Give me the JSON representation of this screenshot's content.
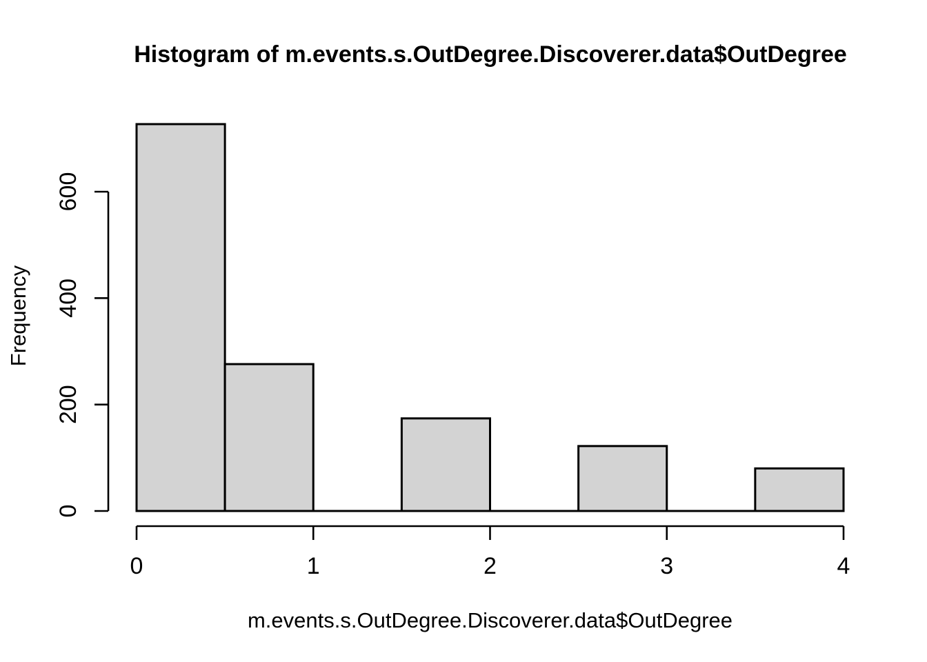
{
  "figure": {
    "background_color": "#FFFFFF",
    "text_color": "#000000"
  },
  "chart_data": {
    "type": "bar",
    "subtype": "histogram",
    "title": "Histogram of m.events.s.OutDegree.Discoverer.data$OutDegree",
    "xlabel": "m.events.s.OutDegree.Discoverer.data$OutDegree",
    "ylabel": "Frequency",
    "bins": [
      {
        "x0": 0.0,
        "x1": 0.5,
        "count": 727
      },
      {
        "x0": 0.5,
        "x1": 1.0,
        "count": 276
      },
      {
        "x0": 1.0,
        "x1": 1.5,
        "count": 0
      },
      {
        "x0": 1.5,
        "x1": 2.0,
        "count": 174
      },
      {
        "x0": 2.0,
        "x1": 2.5,
        "count": 0
      },
      {
        "x0": 2.5,
        "x1": 3.0,
        "count": 122
      },
      {
        "x0": 3.0,
        "x1": 3.5,
        "count": 0
      },
      {
        "x0": 3.5,
        "x1": 4.0,
        "count": 80
      }
    ],
    "x_ticks": [
      0,
      1,
      2,
      3,
      4
    ],
    "y_ticks": [
      0,
      200,
      400,
      600
    ],
    "xlim": [
      0,
      4
    ],
    "ylim": [
      0,
      600
    ],
    "grid": false,
    "legend": false,
    "bar_fill_color": "#D3D3D3",
    "bar_border_color": "#000000",
    "axis_color": "#000000"
  }
}
